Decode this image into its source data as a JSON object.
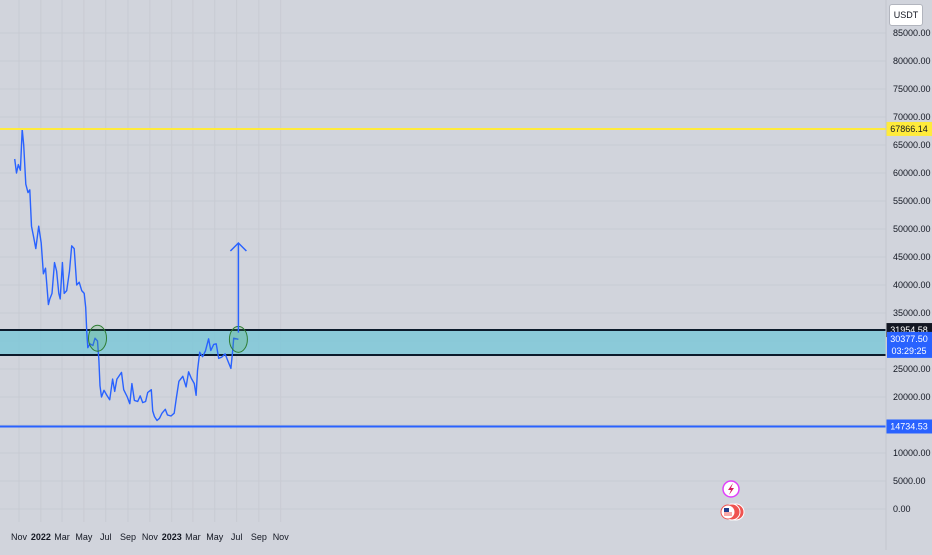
{
  "instrument": {
    "currency": "USDT"
  },
  "chart_data": {
    "type": "line",
    "ylim": [
      0,
      90000
    ],
    "y_ticks": [
      0,
      5000,
      10000,
      15000,
      20000,
      25000,
      30000,
      35000,
      40000,
      45000,
      50000,
      55000,
      60000,
      65000,
      70000,
      75000,
      80000,
      85000
    ],
    "y_tick_labels": [
      "0.00",
      "5000.00",
      "10000.00",
      "15000.00",
      "20000.00",
      "25000.00",
      "30000.00",
      "35000.00",
      "40000.00",
      "45000.00",
      "50000.00",
      "55000.00",
      "60000.00",
      "65000.00",
      "70000.00",
      "75000.00",
      "80000.00",
      "85000.00"
    ],
    "x_ticks": [
      {
        "label": "Nov",
        "date": "2021-11-01",
        "bold": false
      },
      {
        "label": "2022",
        "date": "2022-01-01",
        "bold": true
      },
      {
        "label": "Mar",
        "date": "2022-03-01",
        "bold": false
      },
      {
        "label": "May",
        "date": "2022-05-01",
        "bold": false
      },
      {
        "label": "Jul",
        "date": "2022-07-01",
        "bold": false
      },
      {
        "label": "Sep",
        "date": "2022-09-01",
        "bold": false
      },
      {
        "label": "Nov",
        "date": "2022-11-01",
        "bold": false
      },
      {
        "label": "2023",
        "date": "2023-01-01",
        "bold": true
      },
      {
        "label": "Mar",
        "date": "2023-03-01",
        "bold": false
      },
      {
        "label": "May",
        "date": "2023-05-01",
        "bold": false
      },
      {
        "label": "Jul",
        "date": "2023-07-01",
        "bold": false
      },
      {
        "label": "Sep",
        "date": "2023-09-01",
        "bold": false
      },
      {
        "label": "Nov",
        "date": "2023-11-01",
        "bold": false
      }
    ],
    "series": [
      {
        "color": "#2962ff",
        "points": [
          [
            "2021-10-20",
            62500
          ],
          [
            "2021-10-25",
            60000
          ],
          [
            "2021-10-30",
            61500
          ],
          [
            "2021-11-05",
            60500
          ],
          [
            "2021-11-10",
            67800
          ],
          [
            "2021-11-14",
            65000
          ],
          [
            "2021-11-20",
            58000
          ],
          [
            "2021-11-26",
            56500
          ],
          [
            "2021-12-01",
            57000
          ],
          [
            "2021-12-06",
            50500
          ],
          [
            "2021-12-12",
            48500
          ],
          [
            "2021-12-18",
            46500
          ],
          [
            "2021-12-26",
            50500
          ],
          [
            "2022-01-02",
            47500
          ],
          [
            "2022-01-08",
            42000
          ],
          [
            "2022-01-14",
            43000
          ],
          [
            "2022-01-22",
            36500
          ],
          [
            "2022-01-26",
            37500
          ],
          [
            "2022-02-01",
            38500
          ],
          [
            "2022-02-08",
            44000
          ],
          [
            "2022-02-14",
            42500
          ],
          [
            "2022-02-20",
            38500
          ],
          [
            "2022-02-24",
            37500
          ],
          [
            "2022-03-02",
            44000
          ],
          [
            "2022-03-07",
            38500
          ],
          [
            "2022-03-14",
            39000
          ],
          [
            "2022-03-22",
            42500
          ],
          [
            "2022-03-28",
            47000
          ],
          [
            "2022-04-04",
            46500
          ],
          [
            "2022-04-11",
            40000
          ],
          [
            "2022-04-18",
            40500
          ],
          [
            "2022-04-25",
            39000
          ],
          [
            "2022-05-02",
            38500
          ],
          [
            "2022-05-06",
            36000
          ],
          [
            "2022-05-09",
            31500
          ],
          [
            "2022-05-12",
            28800
          ],
          [
            "2022-05-18",
            29500
          ],
          [
            "2022-05-26",
            29200
          ],
          [
            "2022-06-01",
            30500
          ],
          [
            "2022-06-08",
            30000
          ],
          [
            "2022-06-12",
            26500
          ],
          [
            "2022-06-15",
            22000
          ],
          [
            "2022-06-19",
            20000
          ],
          [
            "2022-06-26",
            21200
          ],
          [
            "2022-07-05",
            20200
          ],
          [
            "2022-07-12",
            19500
          ],
          [
            "2022-07-20",
            23200
          ],
          [
            "2022-07-26",
            21000
          ],
          [
            "2022-08-01",
            23200
          ],
          [
            "2022-08-14",
            24400
          ],
          [
            "2022-08-20",
            21300
          ],
          [
            "2022-08-30",
            20000
          ],
          [
            "2022-09-06",
            18800
          ],
          [
            "2022-09-12",
            22400
          ],
          [
            "2022-09-19",
            19400
          ],
          [
            "2022-09-28",
            19200
          ],
          [
            "2022-10-05",
            20200
          ],
          [
            "2022-10-12",
            19000
          ],
          [
            "2022-10-20",
            19200
          ],
          [
            "2022-10-26",
            20800
          ],
          [
            "2022-11-05",
            21300
          ],
          [
            "2022-11-09",
            17500
          ],
          [
            "2022-11-14",
            16500
          ],
          [
            "2022-11-21",
            15800
          ],
          [
            "2022-11-28",
            16200
          ],
          [
            "2022-12-05",
            17100
          ],
          [
            "2022-12-14",
            17800
          ],
          [
            "2022-12-20",
            16800
          ],
          [
            "2022-12-30",
            16600
          ],
          [
            "2023-01-08",
            17100
          ],
          [
            "2023-01-14",
            19900
          ],
          [
            "2023-01-21",
            22800
          ],
          [
            "2023-02-01",
            23700
          ],
          [
            "2023-02-10",
            21800
          ],
          [
            "2023-02-17",
            24500
          ],
          [
            "2023-02-25",
            23300
          ],
          [
            "2023-03-05",
            22400
          ],
          [
            "2023-03-10",
            20300
          ],
          [
            "2023-03-14",
            24700
          ],
          [
            "2023-03-20",
            28000
          ],
          [
            "2023-03-28",
            27200
          ],
          [
            "2023-04-05",
            28200
          ],
          [
            "2023-04-14",
            30400
          ],
          [
            "2023-04-20",
            28300
          ],
          [
            "2023-04-28",
            29400
          ],
          [
            "2023-05-05",
            29500
          ],
          [
            "2023-05-12",
            26900
          ],
          [
            "2023-05-20",
            27100
          ],
          [
            "2023-05-30",
            27700
          ],
          [
            "2023-06-07",
            26400
          ],
          [
            "2023-06-15",
            25100
          ],
          [
            "2023-06-20",
            28300
          ],
          [
            "2023-06-23",
            30500
          ],
          [
            "2023-06-30",
            30400
          ],
          [
            "2023-07-06",
            30300
          ]
        ]
      }
    ],
    "levels": [
      {
        "name": "top",
        "value": 67866.14,
        "label": "67866.14",
        "color": "#ffeb3b"
      },
      {
        "name": "support",
        "value": 14734.53,
        "label": "14734.53",
        "color": "#2962ff"
      }
    ],
    "zone": {
      "from": 27500,
      "to": 31954.58,
      "fill": "#7fc8d8",
      "top_label": "31954.58"
    },
    "last_price": {
      "value": 30377.5,
      "label": "30377.50",
      "countdown": "03:29:25",
      "color": "#2962ff"
    },
    "arrow": {
      "date": "2023-07-06",
      "from": 31500,
      "to": 47500
    },
    "markers": [
      {
        "name": "breakdown",
        "date": "2022-06-08",
        "value": 30500
      },
      {
        "name": "retest",
        "date": "2023-07-06",
        "value": 30300
      }
    ]
  }
}
